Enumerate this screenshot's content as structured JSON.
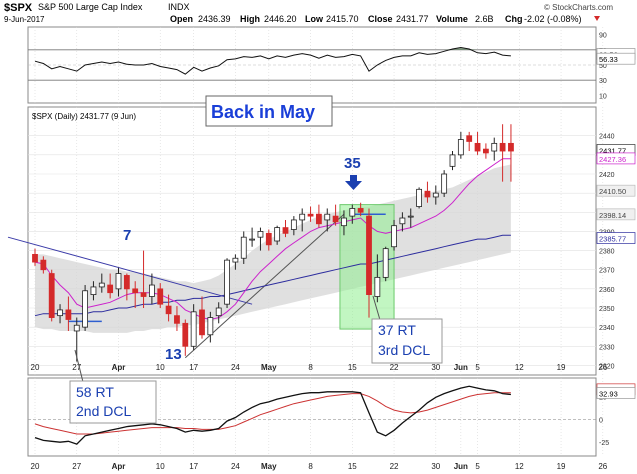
{
  "header": {
    "symbol": "$SPX",
    "name": "S&P 500 Large Cap Index",
    "exchange": "INDX",
    "date": "9-Jun-2017",
    "credit": "© StockCharts.com",
    "open_label": "Open",
    "open": "2436.39",
    "high_label": "High",
    "high": "2446.20",
    "low_label": "Low",
    "low": "2415.70",
    "close_label": "Close",
    "close": "2431.77",
    "volume_label": "Volume",
    "volume": "2.6B",
    "chg_label": "Chg",
    "chg": "-2.02 (-0.08%)"
  },
  "rsi_panel": {
    "ticks": [
      "90",
      "70",
      "50",
      "30",
      "10"
    ],
    "value_labels": [
      "62.56",
      "56.33"
    ]
  },
  "price_panel": {
    "legend": "$SPX (Daily) 2431.77 (9 Jun)",
    "banner": "Back in May",
    "annotations": [
      {
        "text": "7"
      },
      {
        "text": "13"
      },
      {
        "text": "35"
      },
      {
        "text": "37 RT"
      },
      {
        "text": "3rd DCL"
      },
      {
        "text": "58 RT"
      },
      {
        "text": "2nd DCL"
      }
    ],
    "price_tags": [
      "2431.77",
      "2427.36",
      "2410.50",
      "2398.14",
      "2385.77"
    ]
  },
  "macd_panel": {
    "ticks": [
      "25",
      "0",
      "-25"
    ],
    "value_labels": [
      "31.04",
      "32.93"
    ]
  },
  "axis_x_labels": [
    "20",
    "27",
    "Apr",
    "10",
    "17",
    "24",
    "May",
    "8",
    "15",
    "22",
    "30",
    "Jun",
    "5",
    "12",
    "19",
    "26"
  ],
  "colors": {
    "up": "#ffffff",
    "down": "#d42a2a",
    "ma_short": "#cc22cc",
    "ma_long": "#2d2d9e",
    "trendline": "#3a3aa8",
    "uptrend": "#555555",
    "band": "#d6d6d6",
    "highlight": "#90ee90",
    "annotation": "#1a3fb0",
    "banner_text": "#1a3fd8"
  },
  "chart_data": [
    {
      "type": "candlestick",
      "title": "$SPX (Daily) 2431.77 (9 Jun)",
      "x_unit": "trading day index (0 = 20-Mar-2017, 57 = 9-Jun-2017)",
      "ylim": [
        2315,
        2455
      ],
      "y_ticks": [
        2320,
        2330,
        2340,
        2350,
        2360,
        2370,
        2380,
        2390,
        2400,
        2410,
        2420,
        2430,
        2440
      ],
      "ohlc": [
        [
          2378,
          2381,
          2372,
          2374
        ],
        [
          2375,
          2377,
          2368,
          2370
        ],
        [
          2368,
          2370,
          2343,
          2345
        ],
        [
          2346,
          2352,
          2342,
          2349
        ],
        [
          2349,
          2356,
          2338,
          2344
        ],
        [
          2338,
          2345,
          2322,
          2341
        ],
        [
          2340,
          2362,
          2338,
          2359
        ],
        [
          2357,
          2364,
          2354,
          2361
        ],
        [
          2361,
          2368,
          2358,
          2363
        ],
        [
          2362,
          2368,
          2355,
          2358
        ],
        [
          2360,
          2371,
          2356,
          2368
        ],
        [
          2367,
          2368,
          2354,
          2360
        ],
        [
          2360,
          2364,
          2350,
          2358
        ],
        [
          2358,
          2380,
          2350,
          2356
        ],
        [
          2356,
          2368,
          2352,
          2362
        ],
        [
          2360,
          2363,
          2350,
          2352
        ],
        [
          2351,
          2357,
          2343,
          2347
        ],
        [
          2346,
          2351,
          2338,
          2342
        ],
        [
          2342,
          2344,
          2325,
          2330
        ],
        [
          2330,
          2352,
          2328,
          2348
        ],
        [
          2349,
          2356,
          2334,
          2336
        ],
        [
          2336,
          2348,
          2332,
          2345
        ],
        [
          2346,
          2353,
          2342,
          2350
        ],
        [
          2352,
          2376,
          2350,
          2375
        ],
        [
          2374,
          2378,
          2370,
          2376
        ],
        [
          2376,
          2390,
          2373,
          2387
        ],
        [
          2386,
          2392,
          2382,
          2386
        ],
        [
          2387,
          2392,
          2380,
          2390
        ],
        [
          2389,
          2391,
          2380,
          2383
        ],
        [
          2385,
          2393,
          2383,
          2392
        ],
        [
          2392,
          2396,
          2387,
          2389
        ],
        [
          2391,
          2398,
          2388,
          2396
        ],
        [
          2396,
          2402,
          2390,
          2399
        ],
        [
          2399,
          2403,
          2395,
          2398
        ],
        [
          2399,
          2404,
          2392,
          2394
        ],
        [
          2396,
          2402,
          2390,
          2399
        ],
        [
          2398,
          2404,
          2393,
          2395
        ],
        [
          2393,
          2401,
          2388,
          2397
        ],
        [
          2398,
          2404,
          2394,
          2402
        ],
        [
          2402,
          2405,
          2398,
          2400
        ],
        [
          2398,
          2402,
          2345,
          2357
        ],
        [
          2356,
          2378,
          2353,
          2366
        ],
        [
          2366,
          2382,
          2364,
          2381
        ],
        [
          2382,
          2396,
          2380,
          2393
        ],
        [
          2394,
          2400,
          2390,
          2397
        ],
        [
          2398,
          2402,
          2392,
          2398
        ],
        [
          2403,
          2413,
          2402,
          2412
        ],
        [
          2411,
          2416,
          2405,
          2408
        ],
        [
          2408,
          2414,
          2404,
          2410
        ],
        [
          2410,
          2422,
          2408,
          2420
        ],
        [
          2424,
          2432,
          2422,
          2430
        ],
        [
          2430,
          2442,
          2428,
          2438
        ],
        [
          2440,
          2442,
          2432,
          2437
        ],
        [
          2436,
          2442,
          2430,
          2432
        ],
        [
          2433,
          2436,
          2428,
          2431
        ],
        [
          2432,
          2439,
          2427,
          2436
        ],
        [
          2436,
          2446,
          2416,
          2432
        ],
        [
          2436,
          2446,
          2416,
          2432
        ]
      ],
      "ma_short": [
        2374,
        2373,
        2367,
        2362,
        2358,
        2352,
        2350,
        2351,
        2352,
        2353,
        2355,
        2357,
        2358,
        2358,
        2358,
        2357,
        2355,
        2353,
        2349,
        2347,
        2345,
        2344,
        2345,
        2348,
        2352,
        2358,
        2364,
        2369,
        2373,
        2377,
        2381,
        2384,
        2387,
        2390,
        2392,
        2393,
        2394,
        2395,
        2396,
        2397,
        2393,
        2390,
        2389,
        2390,
        2391,
        2392,
        2394,
        2396,
        2398,
        2401,
        2405,
        2410,
        2415,
        2419,
        2422,
        2425,
        2428,
        2428
      ],
      "ma_long": [
        2346,
        2347,
        2347,
        2347,
        2347,
        2347,
        2347,
        2348,
        2348,
        2349,
        2350,
        2350,
        2351,
        2352,
        2352,
        2353,
        2353,
        2354,
        2354,
        2355,
        2355,
        2356,
        2356,
        2357,
        2358,
        2359,
        2360,
        2361,
        2362,
        2363,
        2364,
        2365,
        2366,
        2367,
        2368,
        2369,
        2370,
        2371,
        2372,
        2373,
        2373,
        2374,
        2375,
        2376,
        2377,
        2378,
        2379,
        2380,
        2381,
        2382,
        2383,
        2384,
        2385,
        2386,
        2386,
        2387,
        2388,
        2388
      ],
      "band_upper": [
        2378,
        2378,
        2377,
        2376,
        2375,
        2374,
        2373,
        2372,
        2371,
        2370,
        2370,
        2369,
        2369,
        2368,
        2367,
        2366,
        2365,
        2364,
        2364,
        2363,
        2364,
        2365,
        2367,
        2370,
        2373,
        2376,
        2380,
        2383,
        2386,
        2388,
        2390,
        2392,
        2394,
        2396,
        2398,
        2399,
        2400,
        2401,
        2402,
        2403,
        2403,
        2404,
        2405,
        2406,
        2407,
        2408,
        2409,
        2410,
        2411,
        2412,
        2413,
        2415,
        2417,
        2419,
        2421,
        2423,
        2424,
        2425
      ],
      "band_lower": [
        2340,
        2339,
        2339,
        2338,
        2338,
        2338,
        2338,
        2337,
        2337,
        2337,
        2337,
        2337,
        2338,
        2338,
        2339,
        2339,
        2340,
        2340,
        2341,
        2341,
        2342,
        2343,
        2344,
        2345,
        2346,
        2347,
        2348,
        2349,
        2350,
        2351,
        2352,
        2353,
        2354,
        2355,
        2356,
        2357,
        2358,
        2359,
        2360,
        2361,
        2362,
        2363,
        2364,
        2365,
        2366,
        2367,
        2368,
        2369,
        2370,
        2371,
        2372,
        2373,
        2374,
        2375,
        2376,
        2377,
        2378,
        2379
      ]
    },
    {
      "type": "line",
      "title": "RSI",
      "ylim": [
        0,
        100
      ],
      "y_ticks": [
        90,
        70,
        50,
        30,
        10
      ],
      "reference_lines": [
        70,
        30
      ],
      "values": [
        55,
        52,
        45,
        48,
        45,
        42,
        50,
        52,
        54,
        52,
        54,
        51,
        50,
        50,
        52,
        48,
        46,
        44,
        38,
        47,
        42,
        46,
        49,
        57,
        58,
        61,
        60,
        62,
        58,
        62,
        60,
        63,
        65,
        63,
        59,
        63,
        60,
        61,
        64,
        62,
        42,
        50,
        56,
        60,
        62,
        62,
        66,
        64,
        65,
        68,
        71,
        73,
        71,
        66,
        65,
        67,
        63,
        62
      ]
    },
    {
      "type": "line",
      "title": "MACD",
      "ylim": [
        -40,
        45
      ],
      "y_ticks": [
        25,
        0,
        -25
      ],
      "series": [
        {
          "values": [
            -20,
            -23,
            -24,
            -25,
            -24,
            -27,
            -18,
            -16,
            -14,
            -12,
            -10,
            -8,
            -7,
            -6,
            -5,
            -6,
            -8,
            -10,
            -14,
            -12,
            -13,
            -12,
            -10,
            -2,
            2,
            8,
            13,
            17,
            19,
            22,
            24,
            26,
            28,
            29,
            29,
            30,
            30,
            30,
            30,
            29,
            7,
            -14,
            -18,
            -12,
            -4,
            3,
            10,
            18,
            24,
            28,
            31,
            34,
            36,
            34,
            32,
            31,
            28,
            27
          ]
        },
        {
          "values": [
            -5,
            -8,
            -10,
            -12,
            -14,
            -16,
            -16,
            -16,
            -15,
            -14,
            -13,
            -12,
            -11,
            -10,
            -9,
            -9,
            -9,
            -9,
            -10,
            -10,
            -11,
            -11,
            -11,
            -9,
            -7,
            -3,
            1,
            5,
            8,
            11,
            14,
            17,
            19,
            21,
            23,
            25,
            26,
            27,
            28,
            28,
            25,
            20,
            14,
            10,
            8,
            7,
            8,
            10,
            13,
            16,
            19,
            22,
            25,
            27,
            28,
            29,
            29,
            29
          ]
        }
      ]
    }
  ]
}
